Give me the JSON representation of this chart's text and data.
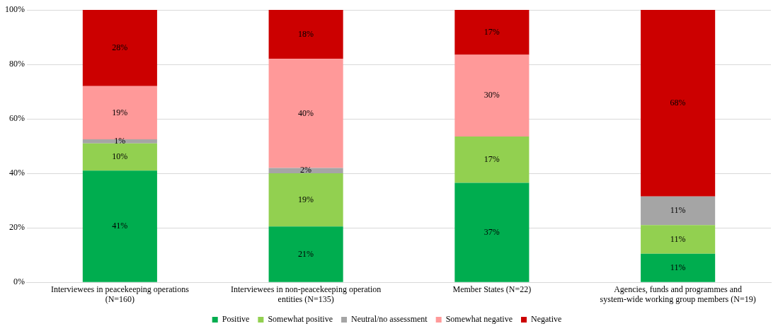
{
  "chart_data": {
    "type": "bar",
    "stacked": true,
    "categories": [
      "Interviewees in peacekeeping operations (N=160)",
      "Interviewees in non-peacekeeping operation entities (N=135)",
      "Member States (N=22)",
      "Agencies, funds and programmes and system-wide working group members (N=19)"
    ],
    "series": [
      {
        "name": "Positive",
        "color": "#00ad4f",
        "values": [
          41,
          20.5,
          36.5,
          10.5
        ],
        "value_labels": [
          "41%",
          "21%",
          "37%",
          "11%"
        ]
      },
      {
        "name": "Somewhat positive",
        "color": "#92d050",
        "values": [
          10,
          19.5,
          17,
          10.5
        ],
        "value_labels": [
          "10%",
          "19%",
          "17%",
          "11%"
        ]
      },
      {
        "name": "Neutral/no assessment",
        "color": "#a5a5a5",
        "values": [
          1.5,
          2,
          0,
          10.5
        ],
        "value_labels": [
          "1%",
          "2%",
          null,
          "11%"
        ]
      },
      {
        "name": "Somewhat negative",
        "color": "#ff9999",
        "values": [
          19.5,
          40,
          30,
          0
        ],
        "value_labels": [
          "19%",
          "40%",
          "30%",
          null
        ]
      },
      {
        "name": "Negative",
        "color": "#cc0000",
        "values": [
          28,
          18,
          16.5,
          68.5
        ],
        "value_labels": [
          "28%",
          "18%",
          "17%",
          "68%"
        ]
      }
    ],
    "ylim": [
      0,
      100
    ],
    "yticks": [
      {
        "value": 0,
        "label": "0%"
      },
      {
        "value": 20,
        "label": "20%"
      },
      {
        "value": 40,
        "label": "40%"
      },
      {
        "value": 60,
        "label": "60%"
      },
      {
        "value": 80,
        "label": "80%"
      },
      {
        "value": 100,
        "label": "100%"
      }
    ],
    "grid": "y",
    "legend": "bottom"
  }
}
